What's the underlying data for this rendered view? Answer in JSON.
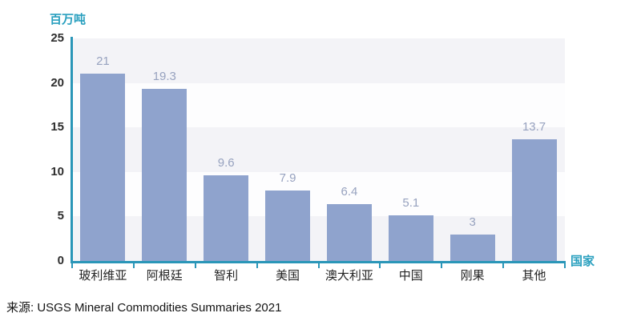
{
  "chart_data": {
    "type": "bar",
    "title": "",
    "unit_label": "百万吨",
    "xlabel": "国家",
    "categories": [
      "玻利维亚",
      "阿根廷",
      "智利",
      "美国",
      "澳大利亚",
      "中国",
      "刚果",
      "其他"
    ],
    "values": [
      21,
      19.3,
      9.6,
      7.9,
      6.4,
      5.1,
      3,
      13.7
    ],
    "value_labels": [
      "21",
      "19.3",
      "9.6",
      "7.9",
      "6.4",
      "5.1",
      "3",
      "13.7"
    ],
    "ylim": [
      0,
      25
    ],
    "yticks": [
      0,
      5,
      10,
      15,
      20,
      25
    ],
    "grid": "alternating horizontal bands every 5 units",
    "legend": "none"
  },
  "source": {
    "text": "来源: USGS Mineral Commodities Summaries 2021"
  },
  "colors": {
    "axis_teal": "#2a96b8",
    "axis_text_teal": "#2aa0bf",
    "bar_fill": "#8fa3cd",
    "value_label": "#97a2bf",
    "band_dark": "#f3f3f7",
    "band_light": "#fdfdfe",
    "tick_text": "#2e2e2e",
    "source_text": "#141414"
  }
}
